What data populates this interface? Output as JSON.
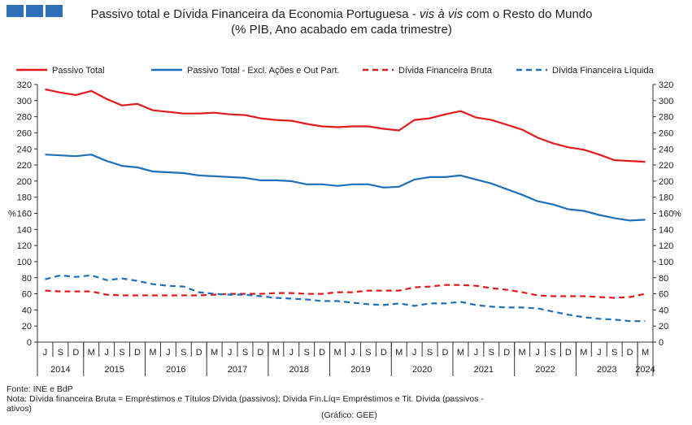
{
  "logo_color": "#2e6fb5",
  "title": "Passivo total e Dívida Financeira da Economia Portuguesa - ",
  "title_italic": "vis à vis",
  "title_rest": " com o Resto do Mundo",
  "subtitle": "(% PIB, Ano acabado em cada trimestre)",
  "footer": {
    "line1": "Fonte: INE e BdP",
    "line2": "Nota: Dívida financeira Bruta = Empréstimos e Títulos Dívida (passivos); Dívida Fin.Líq= Empréstimos e Tit. Dívida (passivos -",
    "line3": "ativos)",
    "credit": "(Gráfico: GEE)"
  },
  "chart_data": {
    "type": "line",
    "ylabel_left": "%",
    "ylabel_right": "%",
    "ylim": [
      0,
      320
    ],
    "yticks": [
      0,
      20,
      40,
      60,
      80,
      100,
      120,
      140,
      160,
      180,
      200,
      220,
      240,
      260,
      280,
      300,
      320
    ],
    "quarter_labels": [
      "J",
      "S",
      "D",
      "M",
      "J",
      "S",
      "D",
      "M",
      "J",
      "S",
      "D",
      "M",
      "J",
      "S",
      "D",
      "M",
      "J",
      "S",
      "D",
      "M",
      "J",
      "S",
      "D",
      "M",
      "J",
      "S",
      "D",
      "M",
      "J",
      "S",
      "D",
      "M",
      "J",
      "S",
      "D",
      "M",
      "J",
      "S",
      "D",
      "M"
    ],
    "year_labels": [
      "2014",
      "2015",
      "2016",
      "2017",
      "2018",
      "2019",
      "2020",
      "2021",
      "2022",
      "2023",
      "2024"
    ],
    "legend_position": "top",
    "series": [
      {
        "name": "Passivo Total",
        "color": "#e31a1c",
        "dash": false,
        "values": [
          314,
          310,
          307,
          312,
          302,
          294,
          296,
          288,
          286,
          284,
          284,
          285,
          283,
          282,
          278,
          276,
          275,
          271,
          268,
          267,
          268,
          268,
          265,
          263,
          276,
          278,
          283,
          287,
          279,
          276,
          270,
          264,
          254,
          247,
          242,
          239,
          233,
          226,
          225,
          224
        ]
      },
      {
        "name": "Passivo Total - Excl. Ações e Out Part.",
        "color": "#1f6fb9",
        "dash": false,
        "values": [
          233,
          232,
          231,
          233,
          225,
          219,
          217,
          212,
          211,
          210,
          207,
          206,
          205,
          204,
          201,
          201,
          200,
          196,
          196,
          194,
          196,
          196,
          192,
          193,
          202,
          205,
          205,
          207,
          202,
          197,
          190,
          183,
          175,
          171,
          165,
          163,
          158,
          154,
          151,
          152
        ]
      },
      {
        "name": "Dívida Financeira Bruta",
        "color": "#e31a1c",
        "dash": true,
        "values": [
          64,
          63,
          63,
          63,
          59,
          58,
          58,
          58,
          58,
          58,
          58,
          59,
          60,
          60,
          60,
          61,
          61,
          60,
          60,
          62,
          62,
          64,
          64,
          64,
          68,
          69,
          71,
          71,
          70,
          67,
          65,
          62,
          58,
          57,
          57,
          57,
          56,
          55,
          56,
          60
        ]
      },
      {
        "name": "Dívida Financeira Líquida",
        "color": "#1f6fb9",
        "dash": true,
        "values": [
          78,
          83,
          81,
          83,
          77,
          79,
          76,
          72,
          70,
          69,
          62,
          60,
          59,
          59,
          57,
          55,
          54,
          53,
          51,
          51,
          49,
          47,
          46,
          48,
          45,
          48,
          48,
          50,
          46,
          44,
          43,
          43,
          42,
          38,
          34,
          31,
          29,
          28,
          26,
          26
        ]
      }
    ]
  }
}
